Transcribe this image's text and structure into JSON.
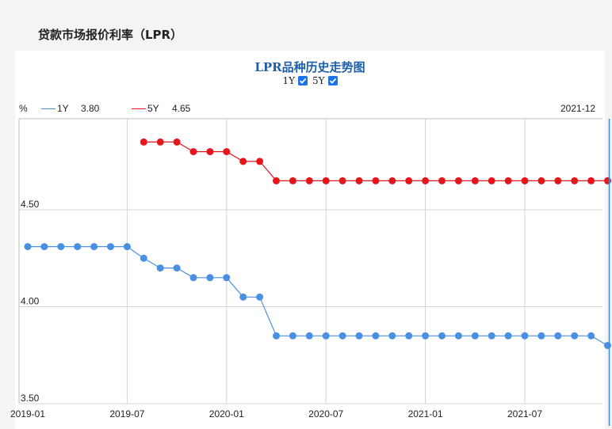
{
  "page": {
    "title": "贷款市场报价利率（LPR）"
  },
  "legend_controls": {
    "items": [
      {
        "label": "1Y",
        "checked": true
      },
      {
        "label": "5Y",
        "checked": true
      }
    ]
  },
  "info_row": {
    "unit": "%",
    "series_1y_label": "1Y",
    "series_1y_value": "3.80",
    "series_5y_label": "5Y",
    "series_5y_value": "4.65",
    "current_date": "2021-12"
  },
  "chart_data": {
    "type": "line",
    "title": "LPR品种历史走势图",
    "x": [
      "2019-01",
      "2019-02",
      "2019-03",
      "2019-04",
      "2019-05",
      "2019-06",
      "2019-07",
      "2019-08",
      "2019-09",
      "2019-10",
      "2019-11",
      "2019-12",
      "2020-01",
      "2020-02",
      "2020-03",
      "2020-04",
      "2020-05",
      "2020-06",
      "2020-07",
      "2020-08",
      "2020-09",
      "2020-10",
      "2020-11",
      "2020-12",
      "2021-01",
      "2021-02",
      "2021-03",
      "2021-04",
      "2021-05",
      "2021-06",
      "2021-07",
      "2021-08",
      "2021-09",
      "2021-10",
      "2021-11",
      "2021-12"
    ],
    "x_tick_labels": [
      "2019-01",
      "2019-07",
      "2020-01",
      "2020-07",
      "2021-01",
      "2021-07"
    ],
    "y_tick_labels": [
      "3.50",
      "4.00",
      "4.50"
    ],
    "ylim": [
      3.5,
      4.97
    ],
    "grid": true,
    "colors": {
      "1Y": "#4a90e2",
      "5Y": "#e8141c",
      "cursor": "#3a8fd9"
    },
    "series": [
      {
        "name": "1Y",
        "values": [
          4.31,
          4.31,
          4.31,
          4.31,
          4.31,
          4.31,
          4.31,
          4.25,
          4.2,
          4.2,
          4.15,
          4.15,
          4.15,
          4.05,
          4.05,
          3.85,
          3.85,
          3.85,
          3.85,
          3.85,
          3.85,
          3.85,
          3.85,
          3.85,
          3.85,
          3.85,
          3.85,
          3.85,
          3.85,
          3.85,
          3.85,
          3.85,
          3.85,
          3.85,
          3.85,
          3.8
        ]
      },
      {
        "name": "5Y",
        "values": [
          null,
          null,
          null,
          null,
          null,
          null,
          null,
          4.85,
          4.85,
          4.85,
          4.8,
          4.8,
          4.8,
          4.75,
          4.75,
          4.65,
          4.65,
          4.65,
          4.65,
          4.65,
          4.65,
          4.65,
          4.65,
          4.65,
          4.65,
          4.65,
          4.65,
          4.65,
          4.65,
          4.65,
          4.65,
          4.65,
          4.65,
          4.65,
          4.65,
          4.65
        ]
      }
    ]
  }
}
